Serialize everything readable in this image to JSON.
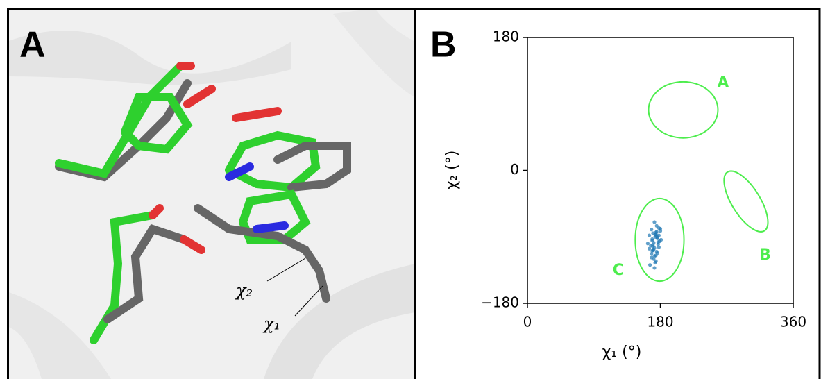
{
  "panel_a": {
    "label": "A",
    "annotations": [
      "χ₂",
      "χ₁"
    ]
  },
  "chart_data": {
    "type": "scatter",
    "title": "B",
    "x_label": "χ₁ (°)",
    "y_label": "χ₂ (°)",
    "xlim": [
      0,
      360
    ],
    "ylim": [
      -180,
      180
    ],
    "xticks": [
      0,
      180,
      360
    ],
    "yticks": [
      {
        "value": -180,
        "label": "−180"
      },
      0,
      180
    ],
    "series": [
      {
        "color": "#1f77b4",
        "x": [
          172,
          175,
          168,
          178,
          170,
          165,
          180,
          173,
          176,
          169,
          171,
          174,
          177,
          167,
          179,
          172,
          170,
          175,
          163,
          181,
          174,
          168,
          176,
          171,
          173,
          178,
          166,
          172,
          175,
          169,
          177,
          170,
          174,
          171,
          168,
          176,
          173,
          180,
          165,
          172,
          174,
          170,
          178,
          169,
          175
        ],
        "values": [
          -70,
          -75,
          -80,
          -78,
          -85,
          -88,
          -82,
          -90,
          -92,
          -95,
          -98,
          -86,
          -100,
          -102,
          -96,
          -105,
          -108,
          -110,
          -99,
          -94,
          -115,
          -118,
          -112,
          -120,
          -125,
          -104,
          -128,
          -132,
          -89,
          -93,
          -97,
          -101,
          -84,
          -107,
          -113,
          -91,
          -87,
          -79,
          -106,
          -116,
          -123,
          -103,
          -88,
          -109,
          -83
        ]
      }
    ],
    "regions": [
      {
        "label": "A",
        "color": "#4ded4d",
        "cx": 211,
        "cy": 82,
        "rx": 47,
        "ry": 38,
        "angle": 0,
        "label_x": 265,
        "label_y": 118
      },
      {
        "label": "B",
        "color": "#4ded4d",
        "cx": 296,
        "cy": -42,
        "rx": 47,
        "ry": 19,
        "angle": 58,
        "label_x": 322,
        "label_y": -115
      },
      {
        "label": "C",
        "color": "#4ded4d",
        "cx": 179,
        "cy": -94,
        "rx": 33,
        "ry": 56,
        "angle": 0,
        "label_x": 123,
        "label_y": -136
      }
    ]
  }
}
